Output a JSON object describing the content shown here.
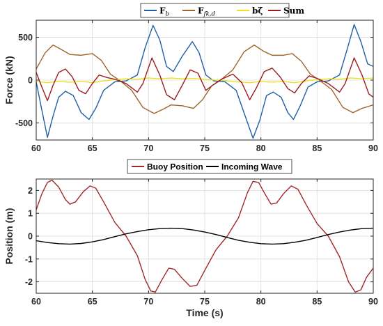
{
  "chart_data": [
    {
      "type": "line",
      "title": "",
      "xlabel": "",
      "ylabel": "Force (kN)",
      "xlim": [
        60,
        90
      ],
      "ylim": [
        -700,
        700
      ],
      "x_ticks": [
        60,
        65,
        70,
        75,
        80,
        85,
        90
      ],
      "y_ticks": [
        -500,
        0,
        500
      ],
      "grid": true,
      "legend_position": "top-outside",
      "series": [
        {
          "name": "F_b",
          "legend": {
            "main": "F",
            "sub": "b"
          },
          "color": "#1f5fa6",
          "points": [
            [
              60,
              -20
            ],
            [
              60.5,
              -350
            ],
            [
              61,
              -670
            ],
            [
              61.5,
              -420
            ],
            [
              62,
              -200
            ],
            [
              62.6,
              -130
            ],
            [
              63.3,
              -180
            ],
            [
              64,
              -380
            ],
            [
              64.7,
              -460
            ],
            [
              65.3,
              -330
            ],
            [
              66,
              -120
            ],
            [
              67,
              -20
            ],
            [
              68,
              -10
            ],
            [
              69,
              60
            ],
            [
              69.7,
              380
            ],
            [
              70.4,
              640
            ],
            [
              71,
              470
            ],
            [
              71.6,
              160
            ],
            [
              72.2,
              100
            ],
            [
              73,
              280
            ],
            [
              73.9,
              450
            ],
            [
              74.5,
              320
            ],
            [
              75.1,
              60
            ],
            [
              75.8,
              -10
            ],
            [
              76.8,
              -20
            ],
            [
              77.8,
              -120
            ],
            [
              78.6,
              -420
            ],
            [
              79.3,
              -680
            ],
            [
              79.9,
              -470
            ],
            [
              80.5,
              -180
            ],
            [
              81.1,
              -140
            ],
            [
              81.8,
              -200
            ],
            [
              82.4,
              -380
            ],
            [
              82.9,
              -460
            ],
            [
              83.5,
              -300
            ],
            [
              84.2,
              -80
            ],
            [
              85,
              -20
            ],
            [
              86,
              -10
            ],
            [
              87,
              60
            ],
            [
              87.7,
              370
            ],
            [
              88.3,
              650
            ],
            [
              88.9,
              450
            ],
            [
              89.5,
              190
            ],
            [
              90,
              160
            ]
          ]
        },
        {
          "name": "F_fk,d",
          "legend": {
            "main": "F",
            "sub": "fk,d"
          },
          "color": "#a0642a",
          "points": [
            [
              60,
              130
            ],
            [
              60.8,
              320
            ],
            [
              61.5,
              410
            ],
            [
              62.2,
              360
            ],
            [
              63,
              300
            ],
            [
              64,
              290
            ],
            [
              65,
              310
            ],
            [
              65.8,
              230
            ],
            [
              66.6,
              70
            ],
            [
              67.5,
              -10
            ],
            [
              68.5,
              -120
            ],
            [
              69.5,
              -320
            ],
            [
              70.5,
              -390
            ],
            [
              71.3,
              -340
            ],
            [
              72,
              -290
            ],
            [
              73,
              -300
            ],
            [
              74,
              -330
            ],
            [
              74.8,
              -230
            ],
            [
              75.6,
              -70
            ],
            [
              76.5,
              10
            ],
            [
              77.5,
              120
            ],
            [
              78.5,
              330
            ],
            [
              79.4,
              410
            ],
            [
              80.2,
              340
            ],
            [
              81,
              290
            ],
            [
              82,
              290
            ],
            [
              82.8,
              310
            ],
            [
              83.6,
              220
            ],
            [
              84.4,
              70
            ],
            [
              85.3,
              -10
            ],
            [
              86.3,
              -110
            ],
            [
              87.3,
              -320
            ],
            [
              88.2,
              -380
            ],
            [
              89,
              -330
            ],
            [
              90,
              -290
            ]
          ]
        },
        {
          "name": "b zeta-dot",
          "legend": {
            "main": "bζ̇",
            "sub": ""
          },
          "color": "#f0e020",
          "points": [
            [
              60,
              -15
            ],
            [
              61,
              -30
            ],
            [
              62,
              -15
            ],
            [
              63,
              -25
            ],
            [
              64,
              -15
            ],
            [
              65,
              -30
            ],
            [
              66,
              -10
            ],
            [
              67,
              5
            ],
            [
              68,
              15
            ],
            [
              69,
              10
            ],
            [
              70,
              25
            ],
            [
              71,
              15
            ],
            [
              72,
              25
            ],
            [
              73,
              15
            ],
            [
              74,
              20
            ],
            [
              75,
              10
            ],
            [
              76,
              0
            ],
            [
              77,
              -10
            ],
            [
              78,
              -20
            ],
            [
              79,
              -30
            ],
            [
              80,
              -15
            ],
            [
              81,
              -25
            ],
            [
              82,
              -15
            ],
            [
              83,
              -30
            ],
            [
              84,
              -10
            ],
            [
              85,
              5
            ],
            [
              86,
              15
            ],
            [
              87,
              10
            ],
            [
              88,
              25
            ],
            [
              89,
              15
            ],
            [
              90,
              25
            ]
          ]
        },
        {
          "name": "Sum",
          "legend": {
            "main": "Sum",
            "sub": ""
          },
          "color": "#9b1c1c",
          "points": [
            [
              60,
              90
            ],
            [
              60.5,
              -80
            ],
            [
              61,
              -240
            ],
            [
              61.5,
              -60
            ],
            [
              62,
              90
            ],
            [
              62.6,
              130
            ],
            [
              63.2,
              40
            ],
            [
              63.8,
              -120
            ],
            [
              64.4,
              -160
            ],
            [
              65,
              -40
            ],
            [
              65.6,
              60
            ],
            [
              66.3,
              30
            ],
            [
              67,
              10
            ],
            [
              68,
              -40
            ],
            [
              69,
              -140
            ],
            [
              69.5,
              -40
            ],
            [
              70.3,
              260
            ],
            [
              71,
              60
            ],
            [
              71.6,
              -170
            ],
            [
              72.3,
              -230
            ],
            [
              73,
              -60
            ],
            [
              73.7,
              120
            ],
            [
              74.4,
              80
            ],
            [
              75.1,
              -120
            ],
            [
              75.7,
              -60
            ],
            [
              76.5,
              10
            ],
            [
              77.5,
              70
            ],
            [
              78.3,
              -30
            ],
            [
              79,
              -230
            ],
            [
              79.6,
              -90
            ],
            [
              80.3,
              100
            ],
            [
              81,
              140
            ],
            [
              81.7,
              40
            ],
            [
              82.4,
              -100
            ],
            [
              83,
              -150
            ],
            [
              83.6,
              -40
            ],
            [
              84.3,
              50
            ],
            [
              85,
              20
            ],
            [
              86,
              -40
            ],
            [
              87,
              -140
            ],
            [
              87.5,
              -40
            ],
            [
              88.3,
              260
            ],
            [
              89,
              60
            ],
            [
              89.6,
              -160
            ],
            [
              90,
              -200
            ]
          ]
        }
      ]
    },
    {
      "type": "line",
      "title": "",
      "xlabel": "Time (s)",
      "ylabel": "Position (m)",
      "xlim": [
        60,
        90
      ],
      "ylim": [
        -2.5,
        2.5
      ],
      "x_ticks": [
        60,
        65,
        70,
        75,
        80,
        85,
        90
      ],
      "y_ticks": [
        -2,
        -1,
        0,
        1,
        2
      ],
      "grid": true,
      "legend_position": "top-outside",
      "series": [
        {
          "name": "Buoy Position",
          "legend": {
            "main": "Buoy Position",
            "sub": ""
          },
          "color": "#a0282a",
          "points": [
            [
              60,
              1.15
            ],
            [
              60.5,
              1.85
            ],
            [
              61,
              2.35
            ],
            [
              61.4,
              2.45
            ],
            [
              62,
              2.15
            ],
            [
              62.6,
              1.6
            ],
            [
              63,
              1.4
            ],
            [
              63.5,
              1.5
            ],
            [
              64.2,
              1.95
            ],
            [
              64.8,
              2.2
            ],
            [
              65.3,
              2.1
            ],
            [
              66,
              1.5
            ],
            [
              67,
              0.6
            ],
            [
              68,
              0
            ],
            [
              69,
              -0.85
            ],
            [
              69.7,
              -1.9
            ],
            [
              70.2,
              -2.4
            ],
            [
              70.6,
              -2.45
            ],
            [
              71.2,
              -1.9
            ],
            [
              71.8,
              -1.4
            ],
            [
              72.3,
              -1.45
            ],
            [
              73,
              -1.85
            ],
            [
              73.7,
              -2.2
            ],
            [
              74.3,
              -2.15
            ],
            [
              75,
              -1.5
            ],
            [
              76,
              -0.6
            ],
            [
              77,
              0
            ],
            [
              78,
              0.8
            ],
            [
              78.8,
              1.9
            ],
            [
              79.3,
              2.4
            ],
            [
              79.8,
              2.35
            ],
            [
              80.3,
              1.9
            ],
            [
              80.9,
              1.4
            ],
            [
              81.4,
              1.45
            ],
            [
              82,
              1.85
            ],
            [
              82.7,
              2.2
            ],
            [
              83.3,
              2.05
            ],
            [
              84,
              1.4
            ],
            [
              85,
              0.55
            ],
            [
              86,
              0
            ],
            [
              87,
              -0.9
            ],
            [
              87.8,
              -2.0
            ],
            [
              88.4,
              -2.45
            ],
            [
              88.9,
              -2.35
            ],
            [
              89.4,
              -1.8
            ],
            [
              90,
              -1.4
            ]
          ]
        },
        {
          "name": "Incoming Wave",
          "legend": {
            "main": "Incoming Wave",
            "sub": ""
          },
          "color": "#000000",
          "points": [
            [
              60,
              -0.2
            ],
            [
              61,
              -0.28
            ],
            [
              62,
              -0.33
            ],
            [
              63,
              -0.35
            ],
            [
              64,
              -0.32
            ],
            [
              65,
              -0.25
            ],
            [
              66,
              -0.15
            ],
            [
              67,
              -0.02
            ],
            [
              68,
              0.1
            ],
            [
              69,
              0.2
            ],
            [
              70,
              0.28
            ],
            [
              71,
              0.33
            ],
            [
              72,
              0.35
            ],
            [
              73,
              0.33
            ],
            [
              74,
              0.27
            ],
            [
              75,
              0.18
            ],
            [
              76,
              0.07
            ],
            [
              77,
              -0.06
            ],
            [
              78,
              -0.18
            ],
            [
              79,
              -0.27
            ],
            [
              80,
              -0.33
            ],
            [
              81,
              -0.35
            ],
            [
              82,
              -0.33
            ],
            [
              83,
              -0.27
            ],
            [
              84,
              -0.18
            ],
            [
              85,
              -0.06
            ],
            [
              86,
              0.07
            ],
            [
              87,
              0.18
            ],
            [
              88,
              0.27
            ],
            [
              89,
              0.33
            ],
            [
              90,
              0.35
            ]
          ]
        }
      ]
    }
  ]
}
